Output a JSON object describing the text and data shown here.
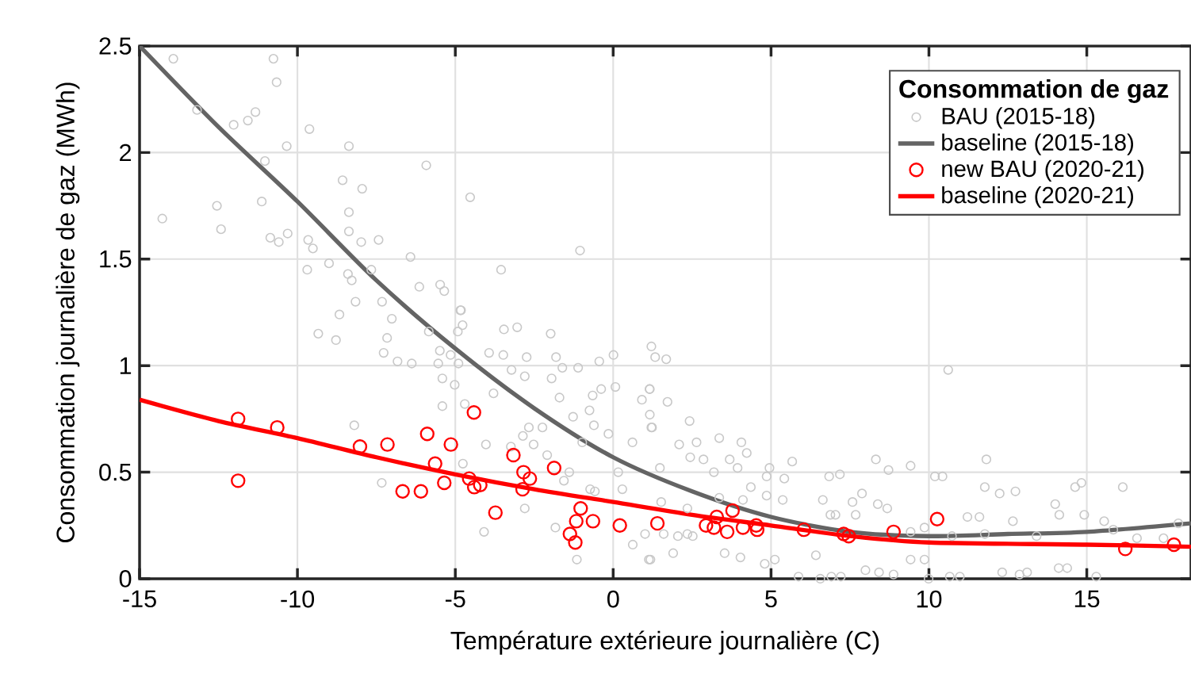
{
  "chart_data": {
    "type": "scatter",
    "xlabel": "Température extérieure journalière (C)",
    "ylabel": "Consommation journalière de gaz (MWh)",
    "legend_title": "Consommation de gaz",
    "legend": "top right",
    "grid": true,
    "xlim": [
      -15,
      18.3
    ],
    "ylim": [
      0,
      2.5
    ],
    "xticks": [
      -15,
      -10,
      -5,
      0,
      5,
      10,
      15
    ],
    "yticks": [
      0,
      0.5,
      1,
      1.5,
      2,
      2.5
    ],
    "series": [
      {
        "name": "BAU (2015-18)",
        "marker": "circle",
        "color": "#c8c8c8",
        "x": [
          -13.93,
          -10.76,
          -10.66,
          -13.18,
          -11.33,
          -11.57,
          -12.02,
          -9.62,
          -10.34,
          -8.37,
          -11.03,
          -5.92,
          -8.57,
          -7.95,
          -4.53,
          -12.55,
          -11.13,
          -14.28,
          -12.42,
          -8.37,
          -8.37,
          -10.31,
          -10.86,
          -10.59,
          -9.66,
          -9.51,
          -7.98,
          -7.43,
          -6.42,
          -1.05,
          -9.0,
          -9.69,
          -8.4,
          -8.28,
          -7.66,
          -3.55,
          -6.14,
          -5.48,
          -5.35,
          -8.16,
          -7.32,
          -4.82,
          -8.67,
          -9.34,
          -8.78,
          -7.01,
          -7.16,
          -7.27,
          -6.83,
          -6.38,
          -5.84,
          -4.84,
          -4.77,
          -4.92,
          -5.49,
          -5.54,
          -5.15,
          -4.9,
          -5.41,
          -5.02,
          -5.41,
          -4.7,
          -8.2,
          -7.33,
          -4.76,
          -4.03,
          -3.93,
          -3.46,
          -3.04,
          -3.48,
          -2.74,
          -3.22,
          -2.8,
          -3.79,
          -1.98,
          -1.81,
          -1.61,
          -1.11,
          -0.44,
          0.01,
          -1.95,
          -1.7,
          -2.67,
          -2.24,
          -2.86,
          -2.52,
          -3.24,
          -2.09,
          -1.27,
          -0.75,
          -0.65,
          -0.38,
          0.07,
          -0.61,
          -0.98,
          -0.15,
          0.61,
          0.16,
          -1.39,
          -1.56,
          -2.8,
          -1.83,
          -1.15,
          -4.09,
          -0.73,
          -0.58,
          0.29,
          0.62,
          1.13,
          1.21,
          1.33,
          0.91,
          1.16,
          1.21,
          1.16,
          1.68,
          1.15,
          1.72,
          1.23,
          2.42,
          2.09,
          2.64,
          3.36,
          4.06,
          4.23,
          2.44,
          2.86,
          3.69,
          1.48,
          3.19,
          3.94,
          4.36,
          4.95,
          4.86,
          5.67,
          5.42,
          5.37,
          4.86,
          4.11,
          3.36,
          2.35,
          1.52,
          1.01,
          1.18,
          1.9,
          2.05,
          2.35,
          3.53,
          4.03,
          4.8,
          5.12,
          6.42,
          5.87,
          6.56,
          6.91,
          7.21,
          7.99,
          8.42,
          8.88,
          9.42,
          9.86,
          9.99,
          10.66,
          10.98,
          12.32,
          12.87,
          13.11,
          14.11,
          14.38,
          15.3,
          6.64,
          6.88,
          7.04,
          7.58,
          7.88,
          6.84,
          7.18,
          8.32,
          8.72,
          9.42,
          7.68,
          8.38,
          8.68,
          10.19,
          10.43,
          10.61,
          11.82,
          11.77,
          12.24,
          12.74,
          11.22,
          11.6,
          11.77,
          12.66,
          13.41,
          14.0,
          14.13,
          14.63,
          14.83,
          14.92,
          15.55,
          16.14,
          15.84,
          16.59,
          17.43,
          17.9,
          9.86,
          9.42,
          10.73,
          2.52,
          1.6
        ],
        "values": [
          2.44,
          2.44,
          2.33,
          2.2,
          2.19,
          2.15,
          2.13,
          2.11,
          2.03,
          2.03,
          1.96,
          1.94,
          1.87,
          1.83,
          1.79,
          1.75,
          1.77,
          1.69,
          1.64,
          1.72,
          1.63,
          1.62,
          1.6,
          1.58,
          1.59,
          1.55,
          1.58,
          1.59,
          1.51,
          1.54,
          1.48,
          1.45,
          1.43,
          1.4,
          1.45,
          1.45,
          1.37,
          1.38,
          1.35,
          1.3,
          1.3,
          1.26,
          1.24,
          1.15,
          1.12,
          1.22,
          1.13,
          1.06,
          1.02,
          1.01,
          1.16,
          1.26,
          1.19,
          1.16,
          1.07,
          1.01,
          1.05,
          1.01,
          0.94,
          0.91,
          0.81,
          0.82,
          0.72,
          0.45,
          0.54,
          0.63,
          1.06,
          1.17,
          1.18,
          1.05,
          1.04,
          0.98,
          0.95,
          0.87,
          1.15,
          1.04,
          0.99,
          0.99,
          1.02,
          1.05,
          0.94,
          0.85,
          0.71,
          0.71,
          0.67,
          0.63,
          0.62,
          0.58,
          0.76,
          0.79,
          0.86,
          0.89,
          0.9,
          0.72,
          0.64,
          0.68,
          0.64,
          0.5,
          0.5,
          0.46,
          0.33,
          0.24,
          0.09,
          0.22,
          0.42,
          0.41,
          0.42,
          0.16,
          0.09,
          1.09,
          1.04,
          0.84,
          0.77,
          0.71,
          0.89,
          1.03,
          0.89,
          0.83,
          0.71,
          0.74,
          0.63,
          0.64,
          0.66,
          0.64,
          0.59,
          0.57,
          0.56,
          0.56,
          0.52,
          0.5,
          0.52,
          0.43,
          0.52,
          0.48,
          0.55,
          0.47,
          0.37,
          0.39,
          0.37,
          0.38,
          0.33,
          0.36,
          0.21,
          0.09,
          0.12,
          0.2,
          0.21,
          0.12,
          0.1,
          0.07,
          0.09,
          0.11,
          0.01,
          0.0,
          0.01,
          0.01,
          0.04,
          0.03,
          0.02,
          0.09,
          0.09,
          0.0,
          0.01,
          0.01,
          0.03,
          0.02,
          0.03,
          0.05,
          0.05,
          0.01,
          0.37,
          0.3,
          0.3,
          0.36,
          0.4,
          0.48,
          0.49,
          0.56,
          0.51,
          0.53,
          0.3,
          0.35,
          0.33,
          0.48,
          0.48,
          0.98,
          0.56,
          0.43,
          0.4,
          0.41,
          0.29,
          0.29,
          0.21,
          0.27,
          0.2,
          0.35,
          0.3,
          0.43,
          0.45,
          0.3,
          0.27,
          0.43,
          0.23,
          0.19,
          0.19,
          0.26,
          0.24,
          0.22,
          0.2,
          0.2,
          0.21
        ]
      },
      {
        "name": "baseline (2015-18)",
        "type": "line",
        "color": "#646464",
        "x": [
          -15,
          -12.5,
          -10,
          -7.5,
          -5,
          -2.5,
          0,
          2.5,
          5,
          7.5,
          10,
          12.5,
          15,
          18.3
        ],
        "values": [
          2.5,
          2.12,
          1.77,
          1.4,
          1.08,
          0.8,
          0.57,
          0.41,
          0.29,
          0.22,
          0.2,
          0.21,
          0.22,
          0.26
        ]
      },
      {
        "name": "new BAU (2020-21)",
        "marker": "circle",
        "color": "#ff0000",
        "x": [
          -11.88,
          -10.64,
          -11.88,
          -8.02,
          -7.15,
          -5.89,
          -5.14,
          -4.41,
          -5.64,
          -5.35,
          -6.67,
          -6.09,
          -4.56,
          -4.4,
          -4.21,
          -3.73,
          -3.16,
          -2.84,
          -2.64,
          -2.87,
          -1.87,
          -1.03,
          -1.17,
          -1.37,
          -1.2,
          -0.64,
          0.21,
          1.4,
          2.94,
          3.28,
          3.78,
          3.61,
          3.19,
          4.11,
          4.53,
          4.56,
          6.04,
          7.3,
          7.46,
          8.88,
          10.26,
          16.22,
          17.76
        ],
        "values": [
          0.75,
          0.71,
          0.46,
          0.62,
          0.63,
          0.68,
          0.63,
          0.78,
          0.54,
          0.45,
          0.41,
          0.41,
          0.47,
          0.43,
          0.44,
          0.31,
          0.58,
          0.5,
          0.47,
          0.42,
          0.52,
          0.33,
          0.27,
          0.21,
          0.17,
          0.27,
          0.25,
          0.26,
          0.25,
          0.29,
          0.32,
          0.22,
          0.24,
          0.24,
          0.25,
          0.23,
          0.23,
          0.21,
          0.2,
          0.22,
          0.28,
          0.14,
          0.16
        ]
      },
      {
        "name": "baseline (2020-21)",
        "type": "line",
        "color": "#ff0000",
        "x": [
          -15,
          -12.5,
          -10,
          -7.5,
          -5,
          -2.5,
          0,
          2.5,
          5,
          7.5,
          10,
          15,
          18.3
        ],
        "values": [
          0.84,
          0.74,
          0.66,
          0.57,
          0.49,
          0.42,
          0.36,
          0.3,
          0.25,
          0.2,
          0.17,
          0.16,
          0.15
        ]
      }
    ]
  }
}
